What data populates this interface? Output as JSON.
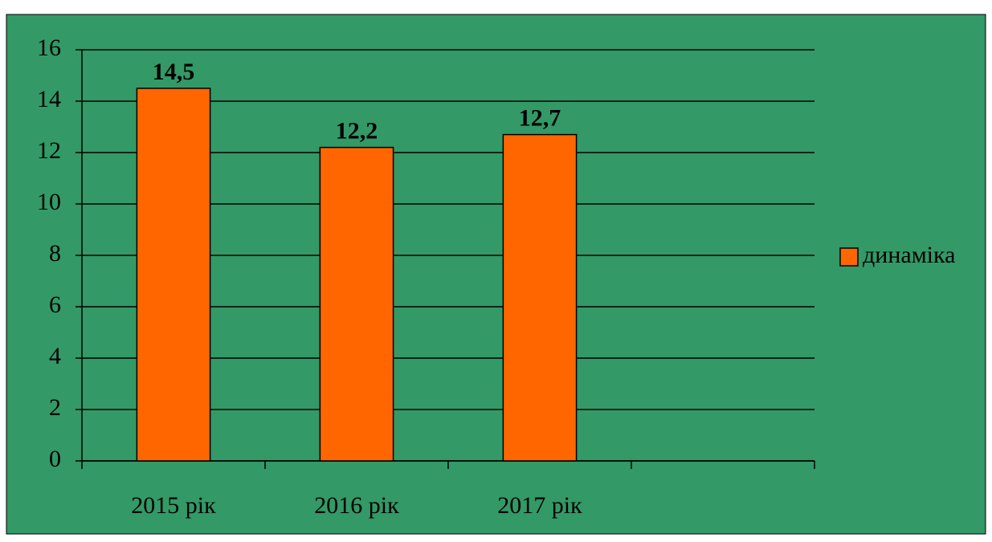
{
  "chart_data": {
    "type": "bar",
    "categories": [
      "2015 рік",
      "2016 рік",
      "2017 рік",
      null
    ],
    "series": [
      {
        "name": "динаміка",
        "color": "#ff6600",
        "values": [
          14.5,
          12.2,
          12.7,
          null
        ],
        "value_labels": [
          "14,5",
          "12,2",
          "12,7",
          null
        ]
      }
    ],
    "ylim": [
      0,
      16
    ],
    "yticks": [
      0,
      2,
      4,
      6,
      8,
      10,
      12,
      14,
      16
    ],
    "grid": true,
    "background": "#339966",
    "legend": "right"
  }
}
